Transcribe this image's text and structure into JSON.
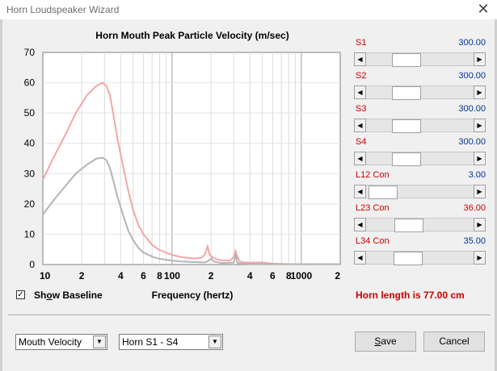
{
  "window": {
    "title": "Horn Loudspeaker Wizard",
    "close_glyph": "✕"
  },
  "chart_data": {
    "type": "line",
    "title": "Horn Mouth Peak Particle Velocity (m/sec)",
    "xlabel": "Frequency (hertz)",
    "ylabel": "",
    "xscale": "log",
    "xlim": [
      10,
      2000
    ],
    "ylim": [
      0,
      70
    ],
    "grid": true,
    "y_ticks": [
      "0",
      "10",
      "20",
      "30",
      "40",
      "50",
      "60",
      "70"
    ],
    "x_ticks": [
      "10",
      "2",
      "4",
      "6",
      "8",
      "100",
      "2",
      "4",
      "6",
      "8",
      "1000",
      "2"
    ],
    "series": [
      {
        "color": "#f4a6a6",
        "x": [
          10,
          12,
          15,
          18,
          22,
          26,
          29,
          31,
          33,
          35,
          38,
          42,
          46,
          50,
          55,
          60,
          70,
          80,
          100,
          120,
          150,
          170,
          180,
          188,
          195,
          205,
          220,
          240,
          280,
          300,
          310,
          320,
          330,
          345,
          380,
          500,
          600,
          700,
          1000,
          2000
        ],
        "y": [
          28,
          35,
          43,
          50,
          56,
          59,
          60,
          59,
          56,
          50,
          41,
          32,
          24,
          18,
          13,
          10,
          6.5,
          4.8,
          3.2,
          2.4,
          2,
          2.3,
          3.5,
          6,
          3.4,
          2.4,
          1.8,
          1.4,
          1.3,
          2.5,
          4.5,
          2.6,
          1.3,
          0.8,
          0.6,
          0.7,
          0.3,
          0.2,
          0.1,
          0.1
        ]
      },
      {
        "color": "#b4b4b4",
        "x": [
          10,
          12,
          15,
          18,
          22,
          26,
          29,
          31,
          33,
          35,
          38,
          42,
          46,
          50,
          55,
          60,
          70,
          80,
          100,
          120,
          150,
          180,
          190,
          200,
          210,
          240,
          300,
          310,
          320,
          340,
          400,
          500,
          700,
          1000,
          2000
        ],
        "y": [
          16.5,
          21,
          26,
          30,
          33,
          35,
          35.2,
          34.5,
          32,
          28,
          22,
          16,
          11,
          8,
          5.5,
          4,
          2.6,
          1.9,
          1.3,
          1,
          0.8,
          0.7,
          1.2,
          2,
          1,
          0.5,
          0.6,
          3.4,
          0.6,
          0.3,
          0.2,
          0.1,
          0.1,
          0.1,
          0.1
        ]
      }
    ]
  },
  "sliders": [
    {
      "label": "S1",
      "value": "300.00",
      "value_color": "#003399",
      "position": 0.33
    },
    {
      "label": "S2",
      "value": "300.00",
      "value_color": "#003399",
      "position": 0.33
    },
    {
      "label": "S3",
      "value": "300.00",
      "value_color": "#003399",
      "position": 0.33
    },
    {
      "label": "S4",
      "value": "300.00",
      "value_color": "#003399",
      "position": 0.33
    },
    {
      "label": "L12  Con",
      "value": "3.00",
      "value_color": "#003399",
      "position": 0.03
    },
    {
      "label": "L23  Con",
      "value": "36.00",
      "value_color": "#cc0000",
      "position": 0.36
    },
    {
      "label": "L34  Con",
      "value": "35.00",
      "value_color": "#003399",
      "position": 0.35
    }
  ],
  "show_baseline": {
    "label_pre": "Sh",
    "label_mid": "o",
    "label_post": "w Baseline",
    "checked": true,
    "check_glyph": "✓"
  },
  "horn_length_text": "Horn length is 77.00 cm",
  "dropdown_velocity": {
    "value": "Mouth Velocity",
    "arrow": "▼"
  },
  "dropdown_horn": {
    "value": "Horn S1 - S4",
    "arrow": "▼"
  },
  "buttons": {
    "save_pre": "",
    "save_under": "S",
    "save_post": "ave",
    "cancel": "Cancel"
  },
  "arrows": {
    "left": "◀",
    "right": "▶"
  }
}
